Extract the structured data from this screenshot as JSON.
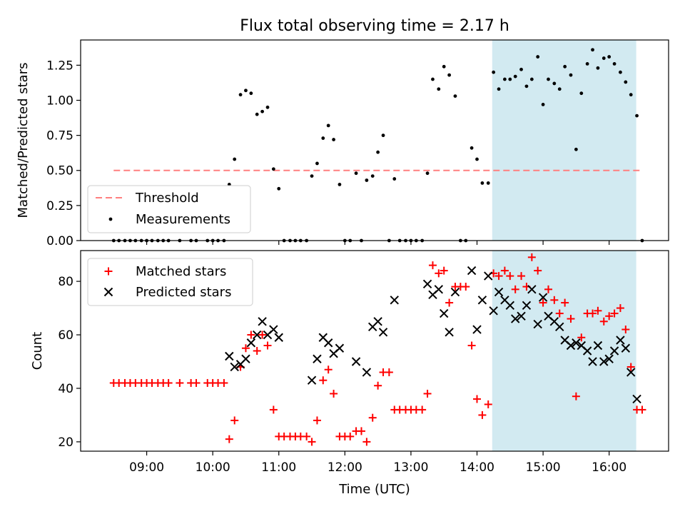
{
  "figure": {
    "title": "Flux total observing time = 2.17 h"
  },
  "chart_data": [
    {
      "type": "scatter",
      "panel": "top",
      "title": "Flux total observing time = 2.17 h",
      "ylabel": "Matched/Predicted stars",
      "xlabel": "",
      "xlim_hours": [
        8.0,
        16.9
      ],
      "ylim": [
        0.0,
        1.43
      ],
      "yticks": [
        0.0,
        0.25,
        0.5,
        0.75,
        1.0,
        1.25
      ],
      "ytick_labels": [
        "0.00",
        "0.25",
        "0.50",
        "0.75",
        "1.00",
        "1.25"
      ],
      "grid": false,
      "legend_location": "lower left",
      "highlight_span_hours": [
        14.23,
        16.41
      ],
      "highlight_color": "#add8e6",
      "threshold": {
        "name": "Threshold",
        "value": 0.5,
        "x_range_hours": [
          8.5,
          16.5
        ],
        "color": "#ff7f7f",
        "style": "dashed"
      },
      "series": [
        {
          "name": "Measurements",
          "color": "#000000",
          "marker": "dot",
          "points": [
            [
              8.5,
              0
            ],
            [
              8.58,
              0
            ],
            [
              8.67,
              0
            ],
            [
              8.75,
              0
            ],
            [
              8.83,
              0
            ],
            [
              8.92,
              0
            ],
            [
              9.0,
              0
            ],
            [
              9.08,
              0
            ],
            [
              9.17,
              0
            ],
            [
              9.25,
              0
            ],
            [
              9.33,
              0
            ],
            [
              9.5,
              0
            ],
            [
              9.67,
              0
            ],
            [
              9.75,
              0
            ],
            [
              9.92,
              0
            ],
            [
              10.0,
              0
            ],
            [
              10.08,
              0
            ],
            [
              10.17,
              0
            ],
            [
              10.25,
              0.4
            ],
            [
              10.33,
              0.58
            ],
            [
              10.42,
              1.04
            ],
            [
              10.5,
              1.07
            ],
            [
              10.58,
              1.05
            ],
            [
              10.67,
              0.9
            ],
            [
              10.75,
              0.92
            ],
            [
              10.83,
              0.95
            ],
            [
              10.92,
              0.51
            ],
            [
              11.0,
              0.37
            ],
            [
              11.08,
              0
            ],
            [
              11.17,
              0
            ],
            [
              11.25,
              0
            ],
            [
              11.33,
              0
            ],
            [
              11.42,
              0
            ],
            [
              11.5,
              0.46
            ],
            [
              11.58,
              0.55
            ],
            [
              11.67,
              0.73
            ],
            [
              11.75,
              0.82
            ],
            [
              11.83,
              0.72
            ],
            [
              11.92,
              0.4
            ],
            [
              12.0,
              0
            ],
            [
              12.08,
              0
            ],
            [
              12.17,
              0.48
            ],
            [
              12.25,
              0
            ],
            [
              12.33,
              0.43
            ],
            [
              12.42,
              0.46
            ],
            [
              12.5,
              0.63
            ],
            [
              12.58,
              0.75
            ],
            [
              12.67,
              0
            ],
            [
              12.75,
              0.44
            ],
            [
              12.83,
              0
            ],
            [
              12.92,
              0
            ],
            [
              13.0,
              0
            ],
            [
              13.08,
              0
            ],
            [
              13.17,
              0
            ],
            [
              13.25,
              0.48
            ],
            [
              13.33,
              1.15
            ],
            [
              13.42,
              1.08
            ],
            [
              13.5,
              1.24
            ],
            [
              13.58,
              1.18
            ],
            [
              13.67,
              1.03
            ],
            [
              13.75,
              0
            ],
            [
              13.83,
              0
            ],
            [
              13.92,
              0.66
            ],
            [
              14.0,
              0.58
            ],
            [
              14.08,
              0.41
            ],
            [
              14.17,
              0.41
            ],
            [
              14.25,
              1.2
            ],
            [
              14.33,
              1.08
            ],
            [
              14.42,
              1.15
            ],
            [
              14.5,
              1.15
            ],
            [
              14.58,
              1.17
            ],
            [
              14.67,
              1.22
            ],
            [
              14.75,
              1.1
            ],
            [
              14.83,
              1.15
            ],
            [
              14.92,
              1.31
            ],
            [
              15.0,
              0.97
            ],
            [
              15.08,
              1.15
            ],
            [
              15.17,
              1.12
            ],
            [
              15.25,
              1.08
            ],
            [
              15.33,
              1.24
            ],
            [
              15.42,
              1.18
            ],
            [
              15.5,
              0.65
            ],
            [
              15.58,
              1.05
            ],
            [
              15.67,
              1.26
            ],
            [
              15.75,
              1.36
            ],
            [
              15.83,
              1.23
            ],
            [
              15.92,
              1.3
            ],
            [
              16.0,
              1.31
            ],
            [
              16.08,
              1.26
            ],
            [
              16.17,
              1.2
            ],
            [
              16.25,
              1.13
            ],
            [
              16.33,
              1.04
            ],
            [
              16.42,
              0.89
            ],
            [
              16.5,
              0
            ]
          ]
        }
      ]
    },
    {
      "type": "scatter",
      "panel": "bottom",
      "title": "",
      "ylabel": "Count",
      "xlabel": "Time (UTC)",
      "xlim_hours": [
        8.0,
        16.9
      ],
      "ylim": [
        16.5,
        91.5
      ],
      "xticks_hours": [
        9,
        10,
        11,
        12,
        13,
        14,
        15,
        16
      ],
      "xtick_labels": [
        "09:00",
        "10:00",
        "11:00",
        "12:00",
        "13:00",
        "14:00",
        "15:00",
        "16:00"
      ],
      "yticks": [
        20,
        40,
        60,
        80
      ],
      "ytick_labels": [
        "20",
        "40",
        "60",
        "80"
      ],
      "grid": false,
      "legend_location": "upper left",
      "highlight_span_hours": [
        14.23,
        16.41
      ],
      "highlight_color": "#add8e6",
      "series": [
        {
          "name": "Matched stars",
          "color": "#ff0000",
          "marker": "plus",
          "points": [
            [
              8.5,
              42
            ],
            [
              8.58,
              42
            ],
            [
              8.67,
              42
            ],
            [
              8.75,
              42
            ],
            [
              8.83,
              42
            ],
            [
              8.92,
              42
            ],
            [
              9.0,
              42
            ],
            [
              9.08,
              42
            ],
            [
              9.17,
              42
            ],
            [
              9.25,
              42
            ],
            [
              9.33,
              42
            ],
            [
              9.5,
              42
            ],
            [
              9.67,
              42
            ],
            [
              9.75,
              42
            ],
            [
              9.92,
              42
            ],
            [
              10.0,
              42
            ],
            [
              10.08,
              42
            ],
            [
              10.17,
              42
            ],
            [
              10.25,
              21
            ],
            [
              10.33,
              28
            ],
            [
              10.42,
              48
            ],
            [
              10.5,
              55
            ],
            [
              10.58,
              60
            ],
            [
              10.67,
              54
            ],
            [
              10.75,
              60
            ],
            [
              10.83,
              56
            ],
            [
              10.92,
              32
            ],
            [
              11.0,
              22
            ],
            [
              11.08,
              22
            ],
            [
              11.17,
              22
            ],
            [
              11.25,
              22
            ],
            [
              11.33,
              22
            ],
            [
              11.42,
              22
            ],
            [
              11.5,
              20
            ],
            [
              11.58,
              28
            ],
            [
              11.67,
              43
            ],
            [
              11.75,
              47
            ],
            [
              11.83,
              38
            ],
            [
              11.92,
              22
            ],
            [
              12.0,
              22
            ],
            [
              12.08,
              22
            ],
            [
              12.17,
              24
            ],
            [
              12.25,
              24
            ],
            [
              12.33,
              20
            ],
            [
              12.42,
              29
            ],
            [
              12.5,
              41
            ],
            [
              12.58,
              46
            ],
            [
              12.67,
              46
            ],
            [
              12.75,
              32
            ],
            [
              12.83,
              32
            ],
            [
              12.92,
              32
            ],
            [
              13.0,
              32
            ],
            [
              13.08,
              32
            ],
            [
              13.17,
              32
            ],
            [
              13.25,
              38
            ],
            [
              13.33,
              86
            ],
            [
              13.42,
              83
            ],
            [
              13.5,
              84
            ],
            [
              13.58,
              72
            ],
            [
              13.67,
              78
            ],
            [
              13.75,
              78
            ],
            [
              13.83,
              78
            ],
            [
              13.92,
              56
            ],
            [
              14.0,
              36
            ],
            [
              14.08,
              30
            ],
            [
              14.17,
              34
            ],
            [
              14.25,
              83
            ],
            [
              14.33,
              82
            ],
            [
              14.42,
              84
            ],
            [
              14.5,
              82
            ],
            [
              14.58,
              77
            ],
            [
              14.67,
              82
            ],
            [
              14.75,
              78
            ],
            [
              14.83,
              89
            ],
            [
              14.92,
              84
            ],
            [
              15.0,
              72
            ],
            [
              15.08,
              77
            ],
            [
              15.17,
              73
            ],
            [
              15.25,
              68
            ],
            [
              15.33,
              72
            ],
            [
              15.42,
              66
            ],
            [
              15.5,
              37
            ],
            [
              15.58,
              59
            ],
            [
              15.67,
              68
            ],
            [
              15.75,
              68
            ],
            [
              15.83,
              69
            ],
            [
              15.92,
              65
            ],
            [
              16.0,
              67
            ],
            [
              16.08,
              68
            ],
            [
              16.17,
              70
            ],
            [
              16.25,
              62
            ],
            [
              16.33,
              48
            ],
            [
              16.42,
              32
            ],
            [
              16.5,
              32
            ]
          ]
        },
        {
          "name": "Predicted stars",
          "color": "#000000",
          "marker": "x",
          "points": [
            [
              10.25,
              52
            ],
            [
              10.33,
              48
            ],
            [
              10.42,
              49
            ],
            [
              10.5,
              51
            ],
            [
              10.58,
              57
            ],
            [
              10.67,
              60
            ],
            [
              10.75,
              65
            ],
            [
              10.83,
              60
            ],
            [
              10.92,
              62
            ],
            [
              11.0,
              59
            ],
            [
              11.5,
              43
            ],
            [
              11.58,
              51
            ],
            [
              11.67,
              59
            ],
            [
              11.75,
              57
            ],
            [
              11.83,
              53
            ],
            [
              11.92,
              55
            ],
            [
              12.17,
              50
            ],
            [
              12.33,
              46
            ],
            [
              12.42,
              63
            ],
            [
              12.5,
              65
            ],
            [
              12.58,
              61
            ],
            [
              12.75,
              73
            ],
            [
              13.25,
              79
            ],
            [
              13.33,
              75
            ],
            [
              13.42,
              77
            ],
            [
              13.5,
              68
            ],
            [
              13.58,
              61
            ],
            [
              13.67,
              76
            ],
            [
              13.92,
              84
            ],
            [
              14.0,
              62
            ],
            [
              14.08,
              73
            ],
            [
              14.17,
              82
            ],
            [
              14.25,
              69
            ],
            [
              14.33,
              76
            ],
            [
              14.42,
              73
            ],
            [
              14.5,
              71
            ],
            [
              14.58,
              66
            ],
            [
              14.67,
              67
            ],
            [
              14.75,
              71
            ],
            [
              14.83,
              77
            ],
            [
              14.92,
              64
            ],
            [
              15.0,
              74
            ],
            [
              15.08,
              67
            ],
            [
              15.17,
              65
            ],
            [
              15.25,
              63
            ],
            [
              15.33,
              58
            ],
            [
              15.42,
              56
            ],
            [
              15.5,
              57
            ],
            [
              15.58,
              56
            ],
            [
              15.67,
              54
            ],
            [
              15.75,
              50
            ],
            [
              15.83,
              56
            ],
            [
              15.92,
              50
            ],
            [
              16.0,
              51
            ],
            [
              16.08,
              54
            ],
            [
              16.17,
              58
            ],
            [
              16.25,
              55
            ],
            [
              16.33,
              46
            ],
            [
              16.42,
              36
            ]
          ]
        }
      ]
    }
  ]
}
